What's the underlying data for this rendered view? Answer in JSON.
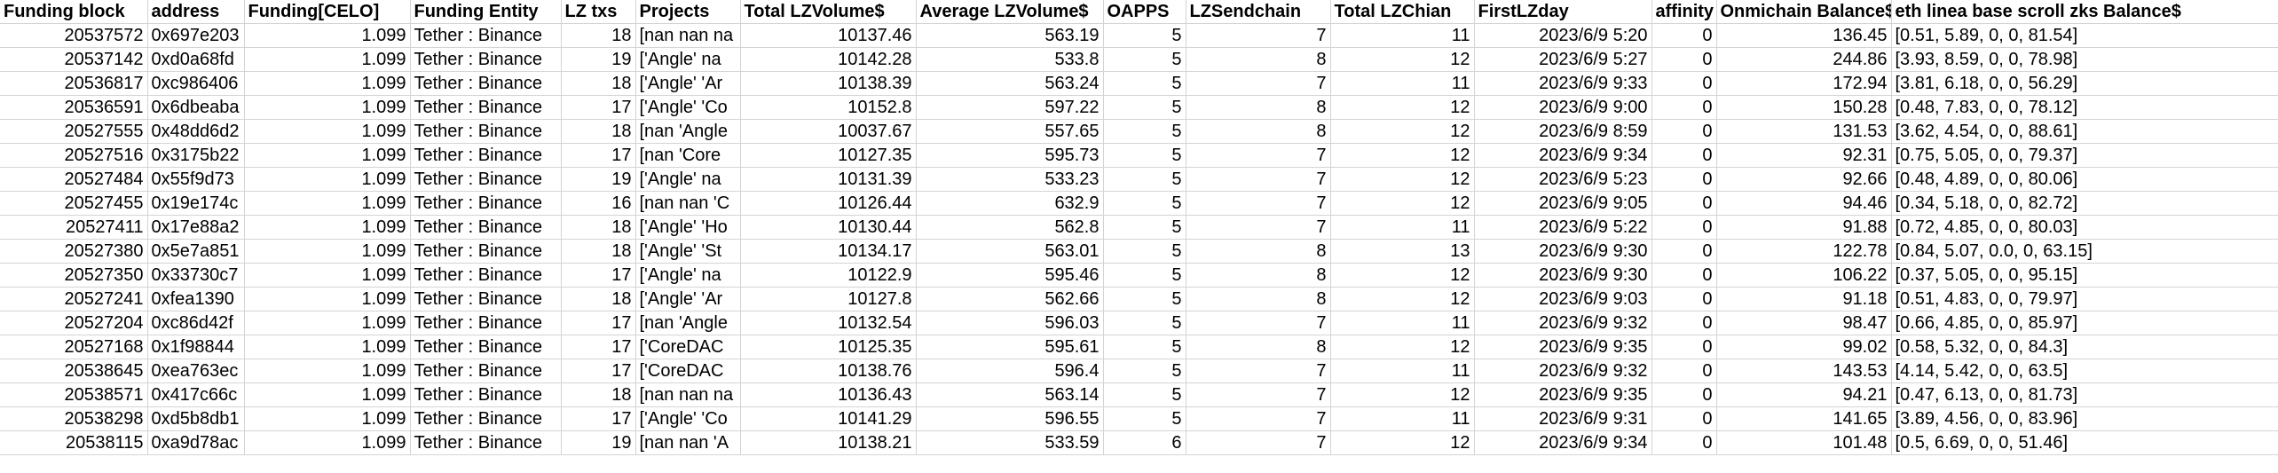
{
  "headers": [
    "Funding block",
    "address",
    "Funding[CELO]",
    "Funding Entity",
    "LZ txs",
    "Projects",
    "Total LZVolume$",
    "Average LZVolume$",
    "OAPPS",
    "LZSendchain",
    "Total LZChian",
    "FirstLZday",
    "affinity",
    "Onmichain Balance$",
    "eth linea base scroll zks Balance$"
  ],
  "rows": [
    [
      "20537572",
      "0x697e203",
      "1.099",
      "Tether : Binance",
      "18",
      "[nan nan na",
      "10137.46",
      "563.19",
      "5",
      "7",
      "11",
      "2023/6/9 5:20",
      "0",
      "136.45",
      "[0.51, 5.89, 0, 0, 81.54]"
    ],
    [
      "20537142",
      "0xd0a68fd",
      "1.099",
      "Tether : Binance",
      "19",
      "['Angle' na",
      "10142.28",
      "533.8",
      "5",
      "8",
      "12",
      "2023/6/9 5:27",
      "0",
      "244.86",
      "[3.93, 8.59, 0, 0, 78.98]"
    ],
    [
      "20536817",
      "0xc986406",
      "1.099",
      "Tether : Binance",
      "18",
      "['Angle' 'Ar",
      "10138.39",
      "563.24",
      "5",
      "7",
      "11",
      "2023/6/9 9:33",
      "0",
      "172.94",
      "[3.81, 6.18, 0, 0, 56.29]"
    ],
    [
      "20536591",
      "0x6dbeaba",
      "1.099",
      "Tether : Binance",
      "17",
      "['Angle' 'Co",
      "10152.8",
      "597.22",
      "5",
      "8",
      "12",
      "2023/6/9 9:00",
      "0",
      "150.28",
      "[0.48, 7.83, 0, 0, 78.12]"
    ],
    [
      "20527555",
      "0x48dd6d2",
      "1.099",
      "Tether : Binance",
      "18",
      "[nan 'Angle",
      "10037.67",
      "557.65",
      "5",
      "8",
      "12",
      "2023/6/9 8:59",
      "0",
      "131.53",
      "[3.62, 4.54, 0, 0, 88.61]"
    ],
    [
      "20527516",
      "0x3175b22",
      "1.099",
      "Tether : Binance",
      "17",
      "[nan 'Core",
      "10127.35",
      "595.73",
      "5",
      "7",
      "12",
      "2023/6/9 9:34",
      "0",
      "92.31",
      "[0.75, 5.05, 0, 0, 79.37]"
    ],
    [
      "20527484",
      "0x55f9d73",
      "1.099",
      "Tether : Binance",
      "19",
      "['Angle' na",
      "10131.39",
      "533.23",
      "5",
      "7",
      "12",
      "2023/6/9 5:23",
      "0",
      "92.66",
      "[0.48, 4.89, 0, 0, 80.06]"
    ],
    [
      "20527455",
      "0x19e174c",
      "1.099",
      "Tether : Binance",
      "16",
      "[nan nan 'C",
      "10126.44",
      "632.9",
      "5",
      "7",
      "12",
      "2023/6/9 9:05",
      "0",
      "94.46",
      "[0.34, 5.18, 0, 0, 82.72]"
    ],
    [
      "20527411",
      "0x17e88a2",
      "1.099",
      "Tether : Binance",
      "18",
      "['Angle' 'Ho",
      "10130.44",
      "562.8",
      "5",
      "7",
      "11",
      "2023/6/9 5:22",
      "0",
      "91.88",
      "[0.72, 4.85, 0, 0, 80.03]"
    ],
    [
      "20527380",
      "0x5e7a851",
      "1.099",
      "Tether : Binance",
      "18",
      "['Angle' 'St",
      "10134.17",
      "563.01",
      "5",
      "8",
      "13",
      "2023/6/9 9:30",
      "0",
      "122.78",
      "[0.84, 5.07, 0.0, 0, 63.15]"
    ],
    [
      "20527350",
      "0x33730c7",
      "1.099",
      "Tether : Binance",
      "17",
      "['Angle' na",
      "10122.9",
      "595.46",
      "5",
      "8",
      "12",
      "2023/6/9 9:30",
      "0",
      "106.22",
      "[0.37, 5.05, 0, 0, 95.15]"
    ],
    [
      "20527241",
      "0xfea1390",
      "1.099",
      "Tether : Binance",
      "18",
      "['Angle' 'Ar",
      "10127.8",
      "562.66",
      "5",
      "8",
      "12",
      "2023/6/9 9:03",
      "0",
      "91.18",
      "[0.51, 4.83, 0, 0, 79.97]"
    ],
    [
      "20527204",
      "0xc86d42f",
      "1.099",
      "Tether : Binance",
      "17",
      "[nan 'Angle",
      "10132.54",
      "596.03",
      "5",
      "7",
      "11",
      "2023/6/9 9:32",
      "0",
      "98.47",
      "[0.66, 4.85, 0, 0, 85.97]"
    ],
    [
      "20527168",
      "0x1f98844",
      "1.099",
      "Tether : Binance",
      "17",
      "['CoreDAC",
      "10125.35",
      "595.61",
      "5",
      "8",
      "12",
      "2023/6/9 9:35",
      "0",
      "99.02",
      "[0.58, 5.32, 0, 0, 84.3]"
    ],
    [
      "20538645",
      "0xea763ec",
      "1.099",
      "Tether : Binance",
      "17",
      "['CoreDAC",
      "10138.76",
      "596.4",
      "5",
      "7",
      "11",
      "2023/6/9 9:32",
      "0",
      "143.53",
      "[4.14, 5.42, 0, 0, 63.5]"
    ],
    [
      "20538571",
      "0x417c66c",
      "1.099",
      "Tether : Binance",
      "18",
      "[nan nan na",
      "10136.43",
      "563.14",
      "5",
      "7",
      "12",
      "2023/6/9 9:35",
      "0",
      "94.21",
      "[0.47, 6.13, 0, 0, 81.73]"
    ],
    [
      "20538298",
      "0xd5b8db1",
      "1.099",
      "Tether : Binance",
      "17",
      "['Angle' 'Co",
      "10141.29",
      "596.55",
      "5",
      "7",
      "11",
      "2023/6/9 9:31",
      "0",
      "141.65",
      "[3.89, 4.56, 0, 0, 83.96]"
    ],
    [
      "20538115",
      "0xa9d78ac",
      "1.099",
      "Tether : Binance",
      "19",
      "[nan nan 'A",
      "10138.21",
      "533.59",
      "6",
      "7",
      "12",
      "2023/6/9 9:34",
      "0",
      "101.48",
      "[0.5, 6.69, 0, 0, 51.46]"
    ]
  ]
}
